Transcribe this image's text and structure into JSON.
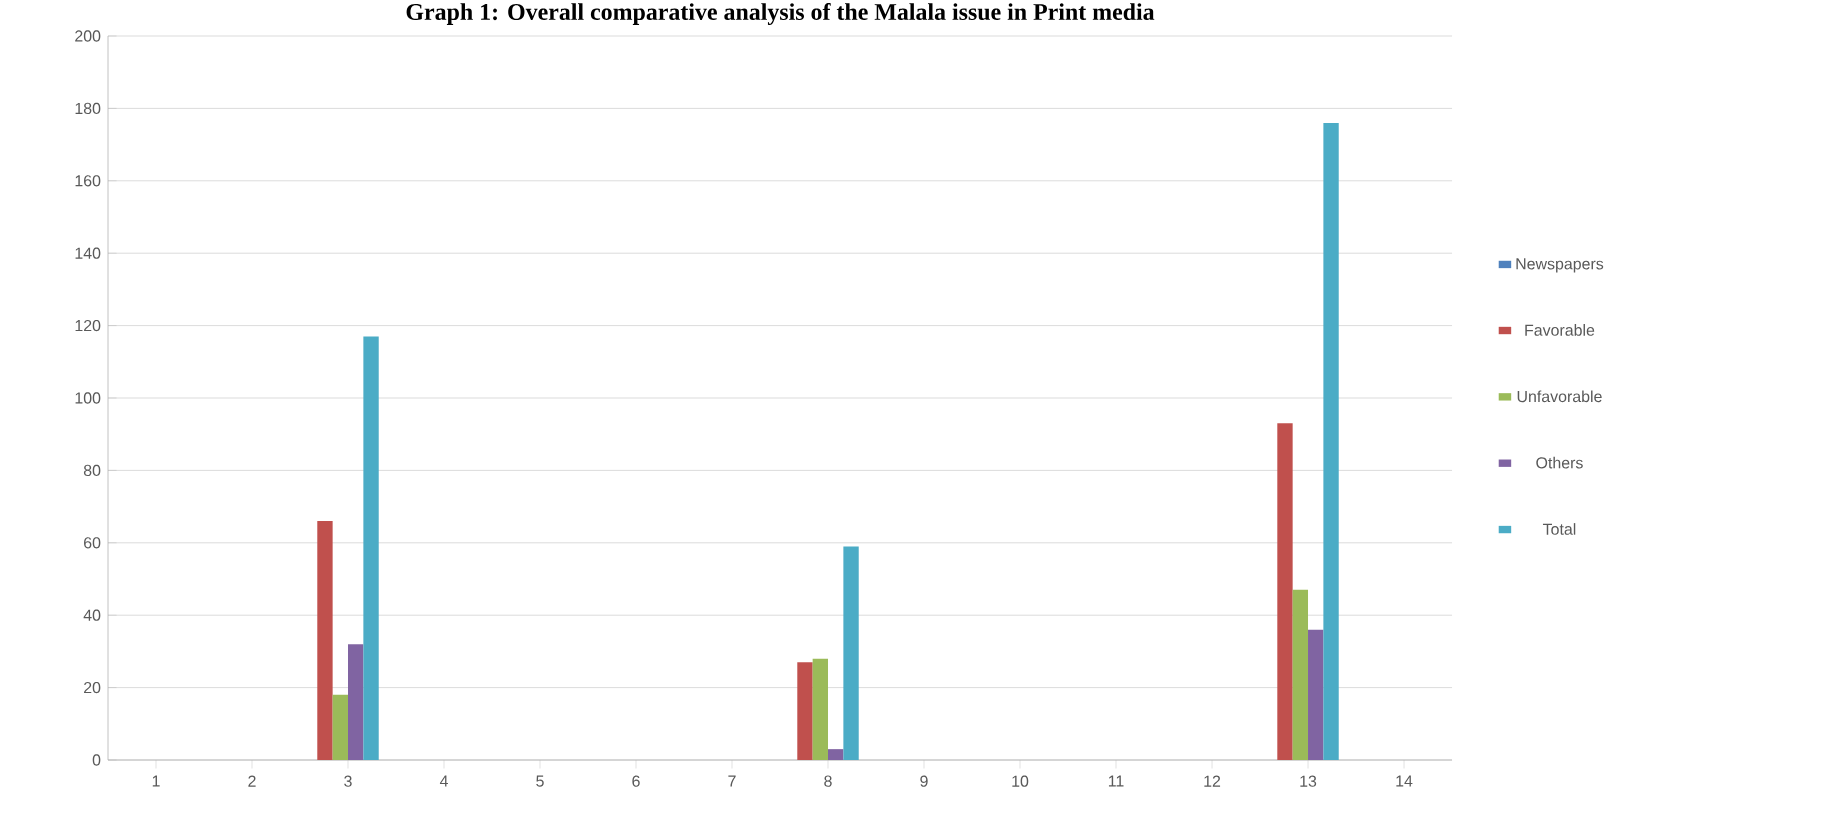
{
  "chart_data": {
    "type": "bar",
    "title": "Graph 1: Overall comparative analysis of the Malala issue in Print media",
    "categories": [
      "1",
      "2",
      "3",
      "4",
      "5",
      "6",
      "7",
      "8",
      "9",
      "10",
      "11",
      "12",
      "13",
      "14"
    ],
    "series": [
      {
        "name": "Newspapers",
        "color": "#4f81bd",
        "values": [
          null,
          null,
          null,
          null,
          null,
          null,
          null,
          null,
          null,
          null,
          null,
          null,
          null,
          null
        ]
      },
      {
        "name": "Favorable",
        "color": "#c0504d",
        "values": [
          null,
          null,
          66,
          null,
          null,
          null,
          null,
          27,
          null,
          null,
          null,
          null,
          93,
          null
        ]
      },
      {
        "name": "Unfavorable",
        "color": "#9bbb59",
        "values": [
          null,
          null,
          18,
          null,
          null,
          null,
          null,
          28,
          null,
          null,
          null,
          null,
          47,
          null
        ]
      },
      {
        "name": "Others",
        "color": "#8064a2",
        "values": [
          null,
          null,
          32,
          null,
          null,
          null,
          null,
          3,
          null,
          null,
          null,
          null,
          36,
          null
        ]
      },
      {
        "name": "Total",
        "color": "#4bacc6",
        "values": [
          null,
          null,
          117,
          null,
          null,
          null,
          null,
          59,
          null,
          null,
          null,
          null,
          176,
          null
        ]
      }
    ],
    "ylim": [
      0,
      200
    ],
    "yticks": [
      0,
      20,
      40,
      60,
      80,
      100,
      120,
      140,
      160,
      180,
      200
    ],
    "grid": "y",
    "legend": "right"
  }
}
